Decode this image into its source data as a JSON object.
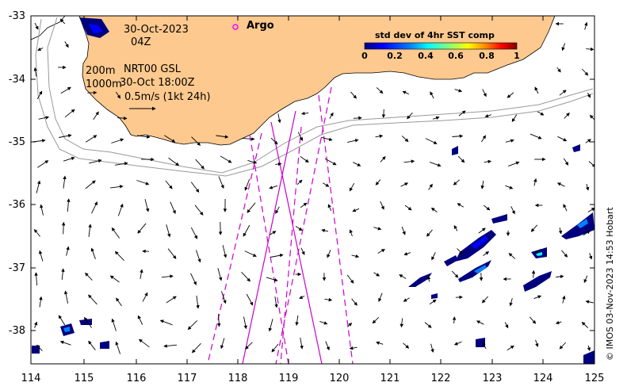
{
  "header": {
    "date": "30-Oct-2023",
    "hour": "04Z",
    "argo_label": "Argo"
  },
  "legend": {
    "line1_depth": "200m",
    "line1_text": "NRT00 GSL",
    "line2_depth": "1000m",
    "line2_text": "30-Oct 18:00Z",
    "scale_text": "0.5m/s (1kt 24h)"
  },
  "colorbar": {
    "title": "std dev of 4hr SST comp",
    "ticks": [
      "0",
      "0.2",
      "0.4",
      "0.6",
      "0.8",
      "1"
    ],
    "colors": [
      "#00007f",
      "#0000ff",
      "#0080ff",
      "#00ffff",
      "#80ff80",
      "#ffff00",
      "#ff8000",
      "#ff0000",
      "#800000"
    ]
  },
  "axes": {
    "x_ticks": [
      "114",
      "115",
      "116",
      "117",
      "118",
      "119",
      "120",
      "121",
      "122",
      "123",
      "124",
      "125"
    ],
    "y_ticks": [
      "-33",
      "-34",
      "-35",
      "-36",
      "-37",
      "-38"
    ],
    "lon_range": [
      114,
      125
    ],
    "lat_range": [
      -38.5,
      -33
    ]
  },
  "credit": "© IMOS 03-Nov-2023 14:53 Hobart",
  "colors": {
    "land": "#fdc98e",
    "argo": "#ff00ff",
    "track": "#cc00cc",
    "isobath": "#999999"
  }
}
